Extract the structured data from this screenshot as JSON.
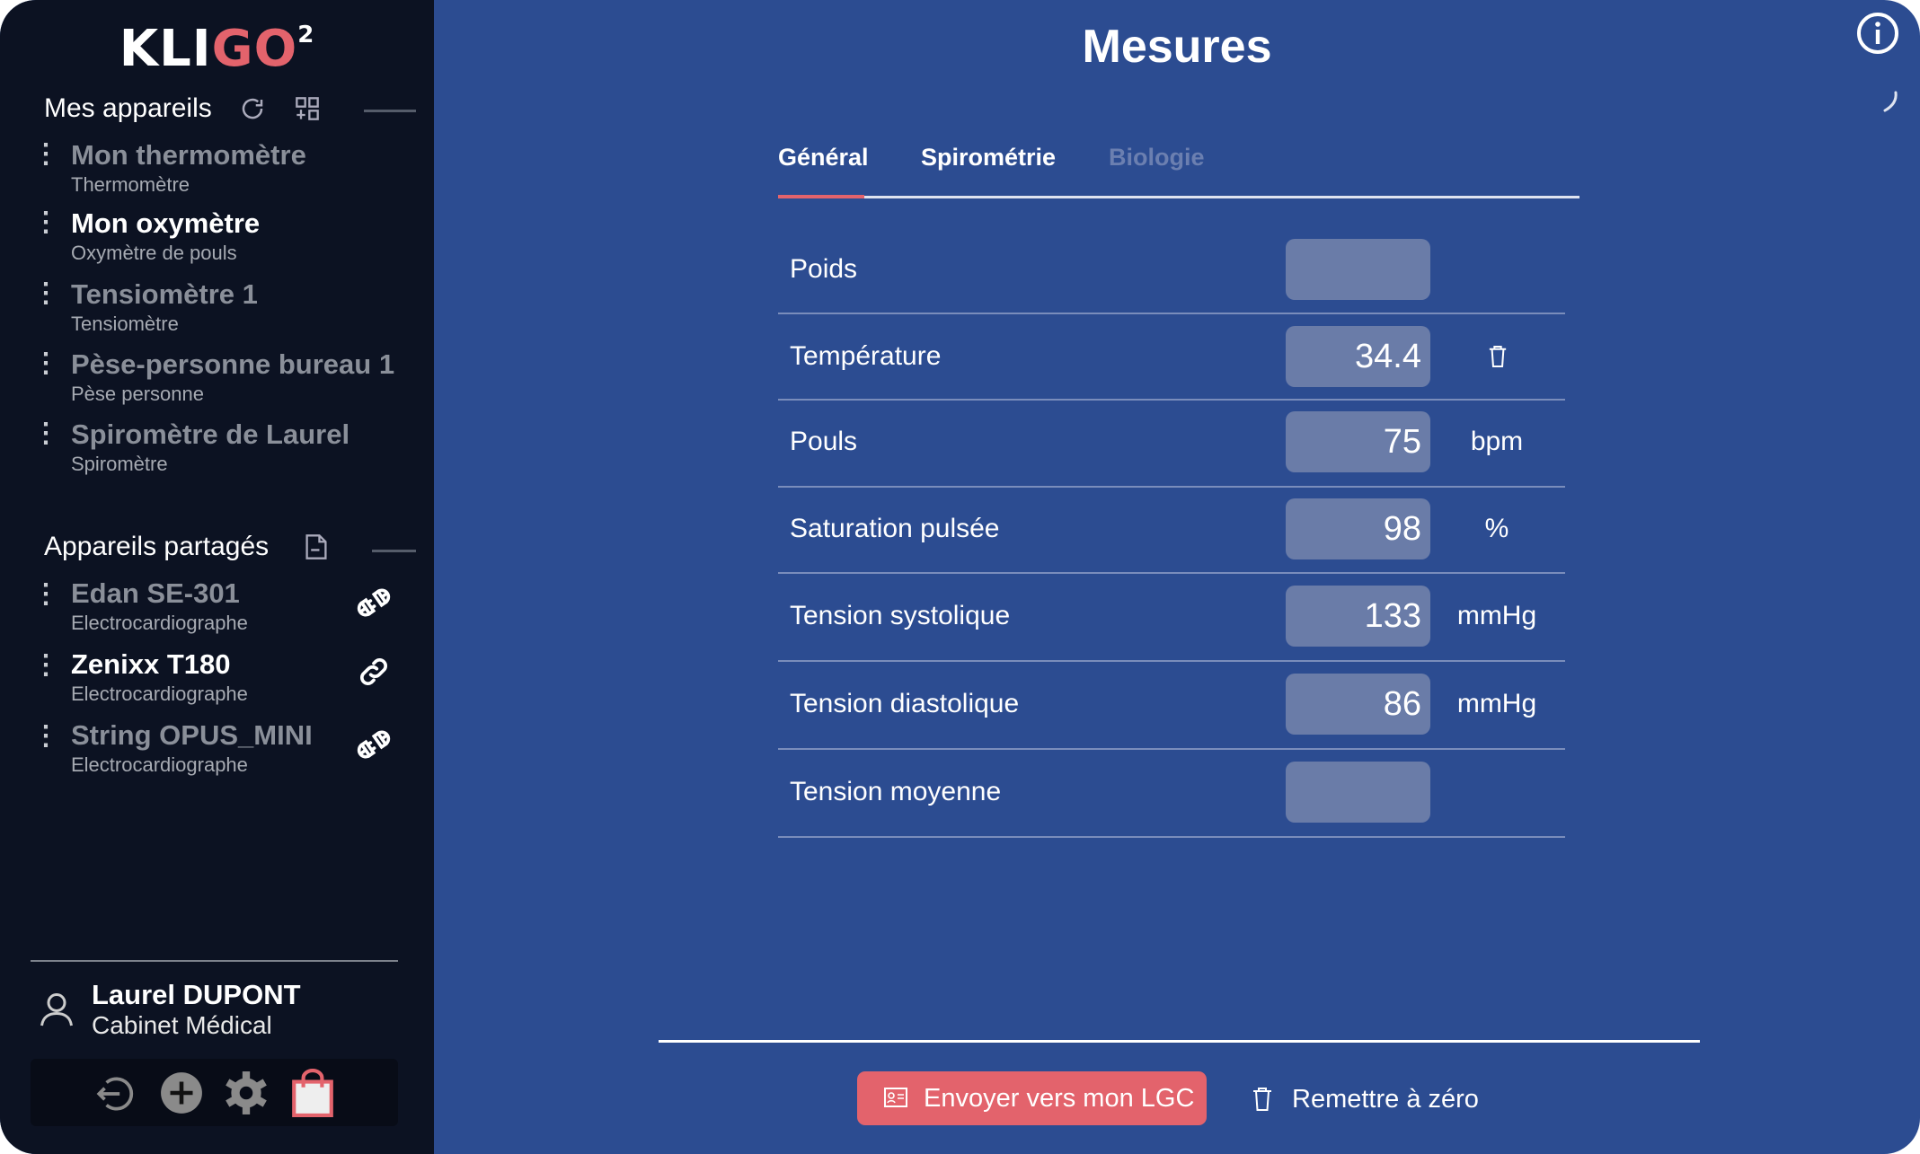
{
  "logo": {
    "text_white": "KLI",
    "text_red": "GO",
    "superscript": "2"
  },
  "colors": {
    "sidebar": "#0c1222",
    "main": "#2c4c91",
    "accent": "#e3636c",
    "input": "#6a7ca8"
  },
  "sidebar": {
    "my_devices_title": "Mes appareils",
    "devices": [
      {
        "name": "Mon thermomètre",
        "type": "Thermomètre",
        "active": false
      },
      {
        "name": "Mon oxymètre",
        "type": "Oxymètre de pouls",
        "active": true
      },
      {
        "name": "Tensiomètre 1",
        "type": "Tensiomètre",
        "active": false
      },
      {
        "name": "Pèse-personne bureau 1",
        "type": "Pèse personne",
        "active": false
      },
      {
        "name": "Spiromètre de Laurel",
        "type": "Spiromètre",
        "active": false
      }
    ],
    "shared_title": "Appareils partagés",
    "shared": [
      {
        "name": "Edan SE-301",
        "type": "Electrocardiographe",
        "active": false,
        "icon": "plug-disconnected-icon"
      },
      {
        "name": "Zenixx T180",
        "type": "Electrocardiographe",
        "active": true,
        "icon": "link-icon"
      },
      {
        "name": "String OPUS_MINI",
        "type": "Electrocardiographe",
        "active": false,
        "icon": "plug-disconnected-icon"
      }
    ],
    "user": {
      "name": "Laurel DUPONT",
      "org": "Cabinet Médical"
    }
  },
  "main": {
    "title": "Mesures",
    "tabs": [
      {
        "label": "Général",
        "active": true
      },
      {
        "label": "Spirométrie",
        "active": false
      },
      {
        "label": "Biologie",
        "disabled": true
      }
    ],
    "rows": [
      {
        "label": "Poids",
        "value": "",
        "unit": ""
      },
      {
        "label": "Température",
        "value": "34.4",
        "unit": "",
        "trash": true
      },
      {
        "label": "Pouls",
        "value": "75",
        "unit": "bpm"
      },
      {
        "label": "Saturation pulsée",
        "value": "98",
        "unit": "%"
      },
      {
        "label": "Tension systolique",
        "value": "133",
        "unit": "mmHg"
      },
      {
        "label": "Tension diastolique",
        "value": "86",
        "unit": "mmHg"
      },
      {
        "label": "Tension moyenne",
        "value": "",
        "unit": ""
      }
    ],
    "send_label": "Envoyer vers mon LGC",
    "reset_label": "Remettre à zéro"
  }
}
